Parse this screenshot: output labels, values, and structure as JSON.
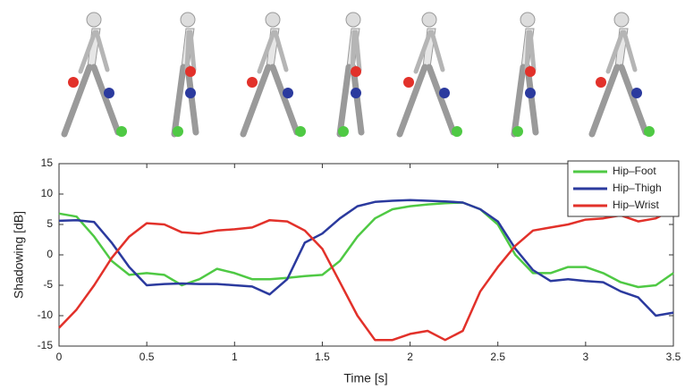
{
  "chart_data": {
    "type": "line",
    "xlabel": "Time [s]",
    "ylabel": "Shadowing [dB]",
    "x": [
      0,
      0.1,
      0.2,
      0.3,
      0.4,
      0.5,
      0.6,
      0.7,
      0.8,
      0.9,
      1.0,
      1.1,
      1.2,
      1.3,
      1.4,
      1.5,
      1.6,
      1.7,
      1.8,
      1.9,
      2.0,
      2.1,
      2.2,
      2.3,
      2.4,
      2.5,
      2.6,
      2.7,
      2.8,
      2.9,
      3.0,
      3.1,
      3.2,
      3.3,
      3.4,
      3.5
    ],
    "series": [
      {
        "name": "Hip–Foot",
        "color": "#4fc944",
        "values": [
          6.8,
          6.3,
          3,
          -1,
          -3.3,
          -3,
          -3.3,
          -5,
          -4,
          -2.3,
          -3,
          -4,
          -4,
          -3.8,
          -3.5,
          -3.3,
          -1,
          3,
          6,
          7.5,
          8,
          8.3,
          8.5,
          8.6,
          7.5,
          5,
          0,
          -3,
          -3,
          -2,
          -2,
          -3,
          -4.5,
          -5.3,
          -5,
          -3
        ]
      },
      {
        "name": "Hip–Thigh",
        "color": "#2b3a9e",
        "values": [
          5.6,
          5.7,
          5.4,
          2,
          -2,
          -5,
          -4.8,
          -4.7,
          -4.8,
          -4.8,
          -5,
          -5.2,
          -6.5,
          -4,
          2,
          3.5,
          6,
          8,
          8.7,
          8.9,
          9,
          8.9,
          8.8,
          8.6,
          7.5,
          5.5,
          1,
          -2.5,
          -4.3,
          -4,
          -4.3,
          -4.5,
          -6,
          -7,
          -10,
          -9.5
        ]
      },
      {
        "name": "Hip–Wrist",
        "color": "#e2312a",
        "values": [
          -12,
          -9,
          -5,
          -0.5,
          3,
          5.2,
          5,
          3.7,
          3.5,
          4,
          4.2,
          4.5,
          5.7,
          5.5,
          4,
          1,
          -4.5,
          -10,
          -14,
          -14,
          -13,
          -12.5,
          -14,
          -12.5,
          -6,
          -2,
          1.5,
          4,
          4.5,
          5,
          5.8,
          6,
          6.5,
          5.5,
          6,
          7.5
        ]
      }
    ],
    "xlim": [
      0,
      3.5
    ],
    "xticks": [
      0,
      0.5,
      1,
      1.5,
      2,
      2.5,
      3,
      3.5
    ],
    "ylim": [
      -15,
      15
    ],
    "yticks": [
      -15,
      -10,
      -5,
      0,
      5,
      10,
      15
    ],
    "grid": false,
    "legend": "upper-right"
  }
}
